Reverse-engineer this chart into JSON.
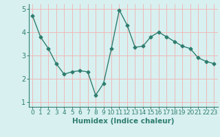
{
  "x": [
    0,
    1,
    2,
    3,
    4,
    5,
    6,
    7,
    8,
    9,
    10,
    11,
    12,
    13,
    14,
    15,
    16,
    17,
    18,
    19,
    20,
    21,
    22,
    23
  ],
  "y": [
    4.7,
    3.8,
    3.3,
    2.65,
    2.2,
    2.3,
    2.35,
    2.3,
    1.3,
    1.8,
    3.3,
    4.95,
    4.3,
    3.35,
    3.4,
    3.8,
    4.0,
    3.8,
    3.6,
    3.4,
    3.3,
    2.9,
    2.75,
    2.65
  ],
  "xlabel": "Humidex (Indice chaleur)",
  "ylim": [
    0.8,
    5.2
  ],
  "xlim": [
    -0.5,
    23.5
  ],
  "yticks": [
    1,
    2,
    3,
    4,
    5
  ],
  "xticks": [
    0,
    1,
    2,
    3,
    4,
    5,
    6,
    7,
    8,
    9,
    10,
    11,
    12,
    13,
    14,
    15,
    16,
    17,
    18,
    19,
    20,
    21,
    22,
    23
  ],
  "xtick_labels": [
    "0",
    "1",
    "2",
    "3",
    "4",
    "5",
    "6",
    "7",
    "8",
    "9",
    "10",
    "11",
    "12",
    "13",
    "14",
    "15",
    "16",
    "17",
    "18",
    "19",
    "20",
    "21",
    "22",
    "23"
  ],
  "line_color": "#2e7d6e",
  "marker": "D",
  "marker_size": 2.5,
  "bg_color": "#d8f0f0",
  "grid_color": "#f0b8b8",
  "line_width": 1.0,
  "tick_fontsize": 6.5,
  "xlabel_fontsize": 7.5
}
